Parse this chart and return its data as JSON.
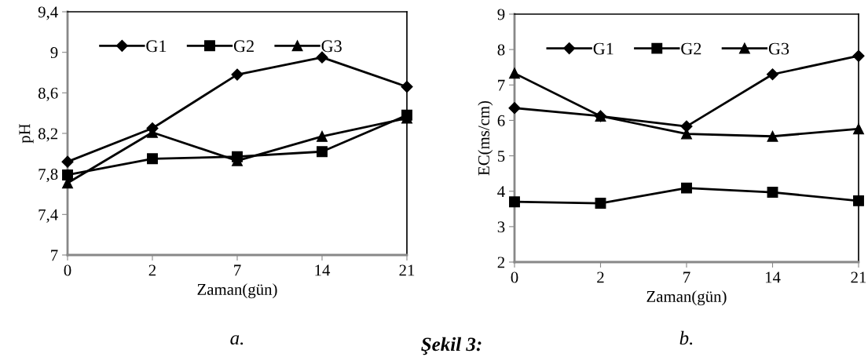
{
  "chart_data": [
    {
      "type": "line",
      "xlabel": "Zaman(gün)",
      "ylabel": "pH",
      "categories": [
        "0",
        "2",
        "7",
        "14",
        "21"
      ],
      "ylim": [
        7,
        9.4
      ],
      "yticks": [
        {
          "value": 7,
          "label": "7"
        },
        {
          "value": 7.4,
          "label": "7,4"
        },
        {
          "value": 7.8,
          "label": "7,8"
        },
        {
          "value": 8.2,
          "label": "8,2"
        },
        {
          "value": 8.6,
          "label": "8,6"
        },
        {
          "value": 9,
          "label": "9"
        },
        {
          "value": 9.4,
          "label": "9,4"
        }
      ],
      "grid": false,
      "legend": "top left",
      "annotations": [
        "a.",
        "Şekil 3:"
      ],
      "series": [
        {
          "name": "G1",
          "color": "#000000",
          "marker": "diamond",
          "values": [
            7.92,
            8.25,
            8.78,
            8.95,
            8.66
          ]
        },
        {
          "name": "G2",
          "color": "#000000",
          "marker": "square",
          "values": [
            7.79,
            7.95,
            7.97,
            8.02,
            8.38
          ]
        },
        {
          "name": "G3",
          "color": "#000000",
          "marker": "triangle",
          "values": [
            7.71,
            8.21,
            7.93,
            8.17,
            8.35
          ]
        }
      ]
    },
    {
      "type": "line",
      "xlabel": "Zaman(gün)",
      "ylabel": "EC(ms/cm)",
      "categories": [
        "0",
        "2",
        "7",
        "14",
        "21"
      ],
      "ylim": [
        2,
        9
      ],
      "yticks": [
        2,
        3,
        4,
        5,
        6,
        7,
        8,
        9
      ],
      "grid": false,
      "legend": "top left",
      "annotations": [
        "b."
      ],
      "series": [
        {
          "name": "G1",
          "color": "#000000",
          "marker": "diamond",
          "values": [
            6.35,
            6.12,
            5.83,
            7.3,
            7.82
          ]
        },
        {
          "name": "G2",
          "color": "#000000",
          "marker": "square",
          "values": [
            3.7,
            3.66,
            4.09,
            3.97,
            3.73
          ]
        },
        {
          "name": "G3",
          "color": "#000000",
          "marker": "triangle",
          "values": [
            7.33,
            6.12,
            5.62,
            5.55,
            5.76
          ]
        }
      ]
    }
  ]
}
